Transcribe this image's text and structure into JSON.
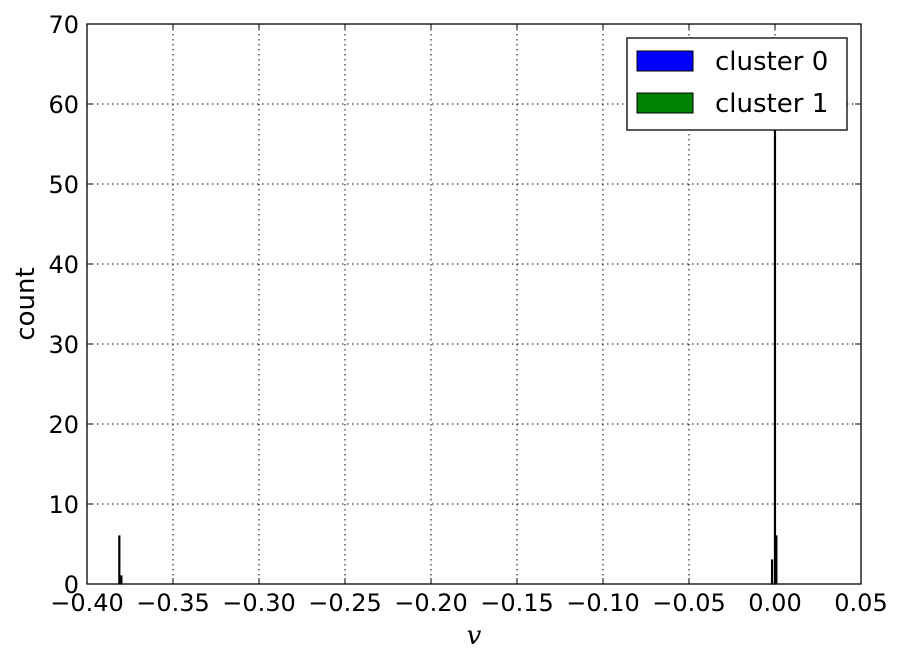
{
  "chart_data": {
    "type": "bar",
    "xlabel": "v",
    "ylabel": "count",
    "xlim": [
      -0.4,
      0.05
    ],
    "ylim": [
      0,
      70
    ],
    "grid": true,
    "legend_position": "top-right",
    "x_ticks": [
      -0.4,
      -0.35,
      -0.3,
      -0.25,
      -0.2,
      -0.15,
      -0.1,
      -0.05,
      0.0,
      0.05
    ],
    "x_tick_labels": [
      "−0.40",
      "−0.35",
      "−0.30",
      "−0.25",
      "−0.20",
      "−0.15",
      "−0.10",
      "−0.05",
      "0.00",
      "0.05"
    ],
    "y_ticks": [
      0,
      10,
      20,
      30,
      40,
      50,
      60,
      70
    ],
    "y_tick_labels": [
      "0",
      "10",
      "20",
      "30",
      "40",
      "50",
      "60",
      "70"
    ],
    "series": [
      {
        "name": "cluster 0",
        "color": "#0000ff",
        "bins": [
          {
            "x0": -0.3815,
            "x1": -0.381,
            "count": 6
          },
          {
            "x0": -0.3803,
            "x1": -0.3798,
            "count": 1
          }
        ]
      },
      {
        "name": "cluster 1",
        "color": "#008000",
        "bins": [
          {
            "x0": -0.002,
            "x1": -0.0015,
            "count": 3
          },
          {
            "x0": -0.0003,
            "x1": 0.0002,
            "count": 61
          },
          {
            "x0": 0.0005,
            "x1": 0.001,
            "count": 6
          }
        ]
      }
    ]
  }
}
